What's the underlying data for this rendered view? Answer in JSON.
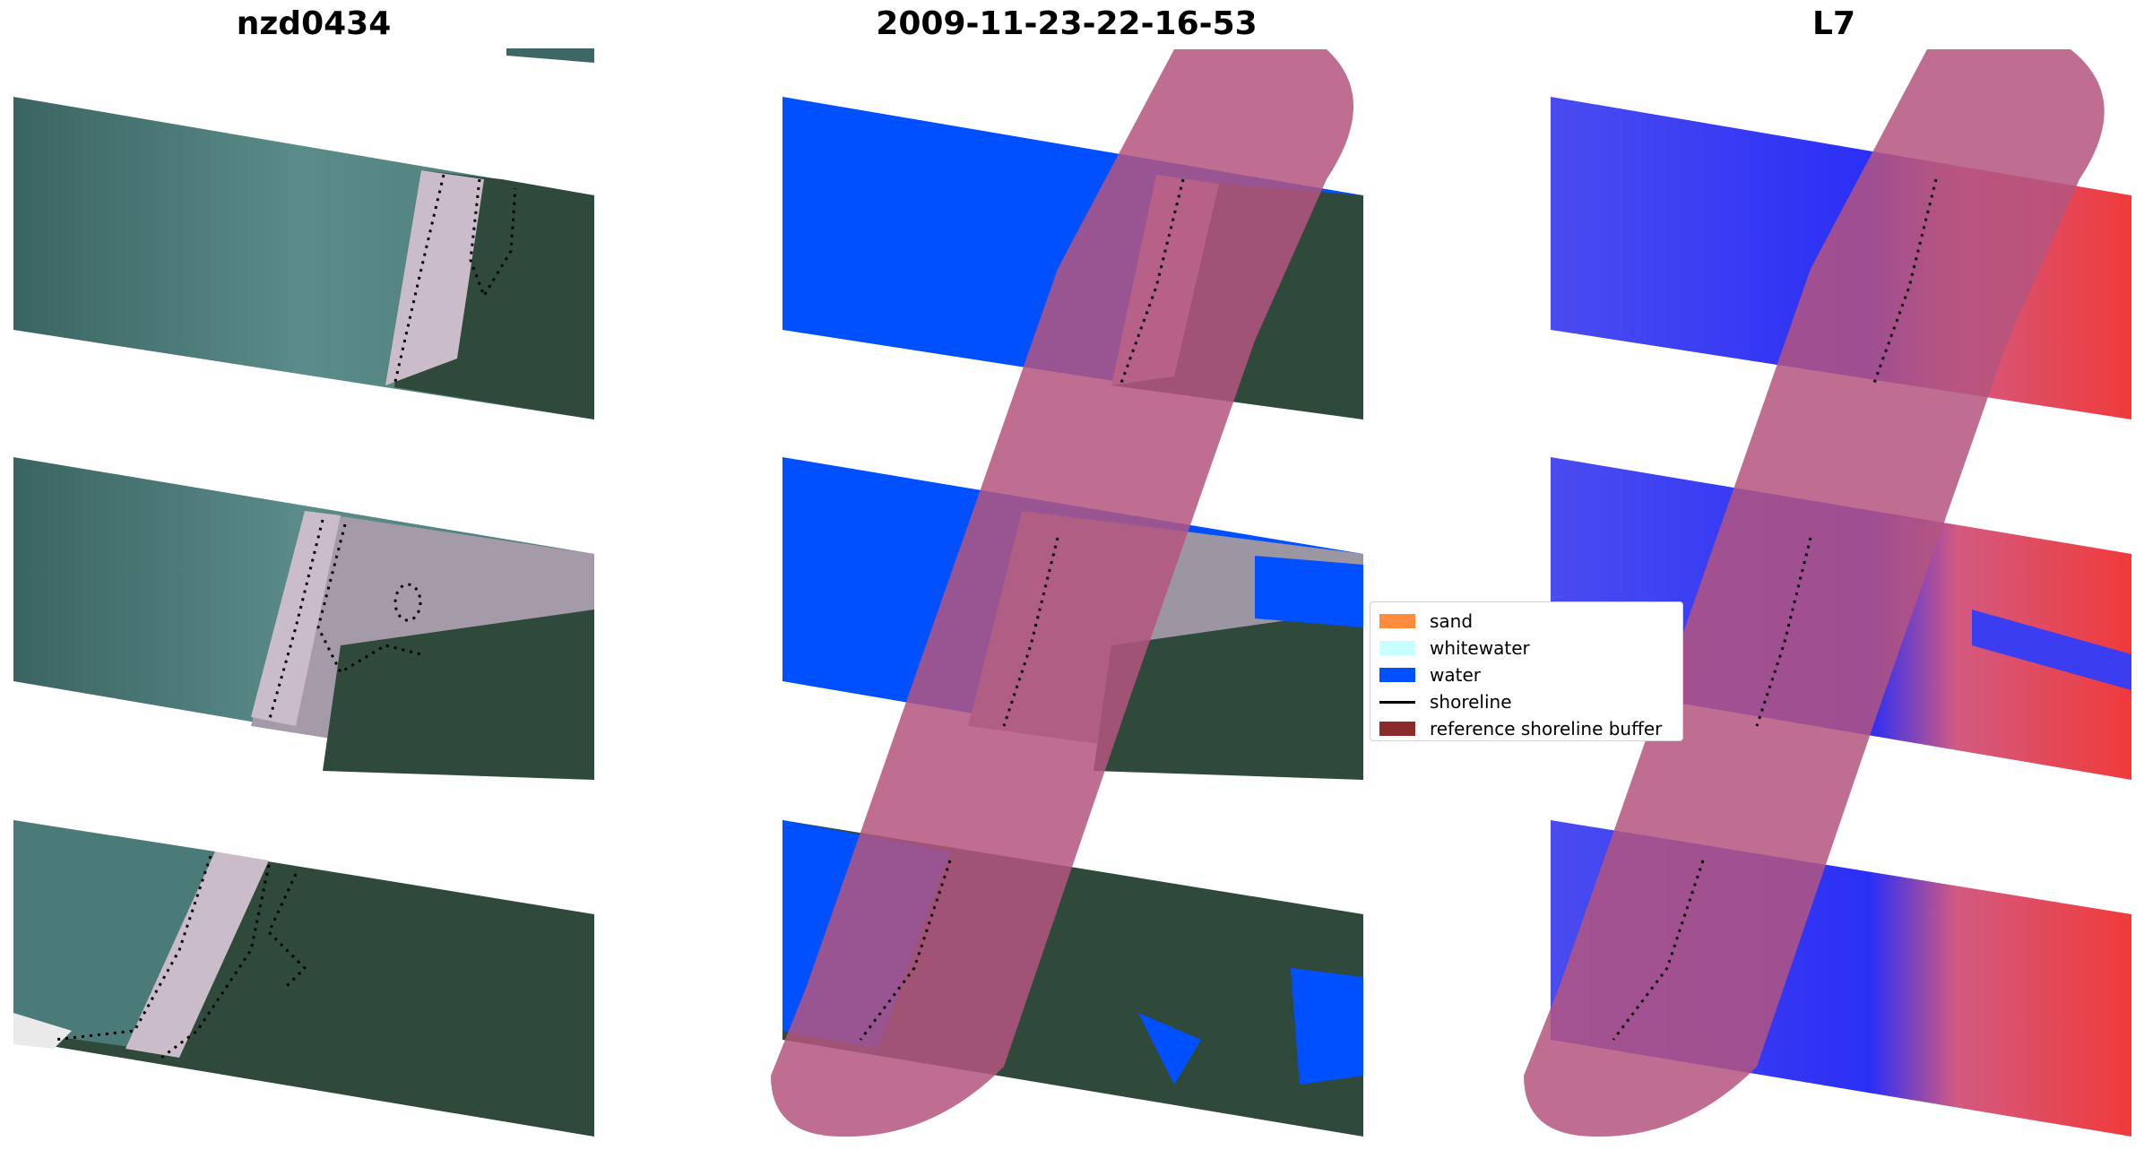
{
  "panels": [
    {
      "title": "nzd0434",
      "kind": "rgb"
    },
    {
      "title": "2009-11-23-22-16-53",
      "kind": "classified"
    },
    {
      "title": "L7",
      "kind": "index"
    }
  ],
  "legend": {
    "items": [
      {
        "label": "sand",
        "color": "#ff8c3c",
        "type": "patch"
      },
      {
        "label": "whitewater",
        "color": "#c8ffff",
        "type": "patch"
      },
      {
        "label": "water",
        "color": "#0050ff",
        "type": "patch"
      },
      {
        "label": "shoreline",
        "color": "#000000",
        "type": "line"
      },
      {
        "label": "reference shoreline buffer",
        "color": "#8b2a2a",
        "type": "patch"
      }
    ]
  },
  "colors": {
    "sea": "#3d6664",
    "sea_light": "#5d8e8c",
    "land": "#2f4a3a",
    "sand": "#c9b8c5",
    "water_class": "#0050ff",
    "buffer": "#b4557f",
    "index_water": "#3a3df0",
    "index_land": "#f03a3a"
  }
}
